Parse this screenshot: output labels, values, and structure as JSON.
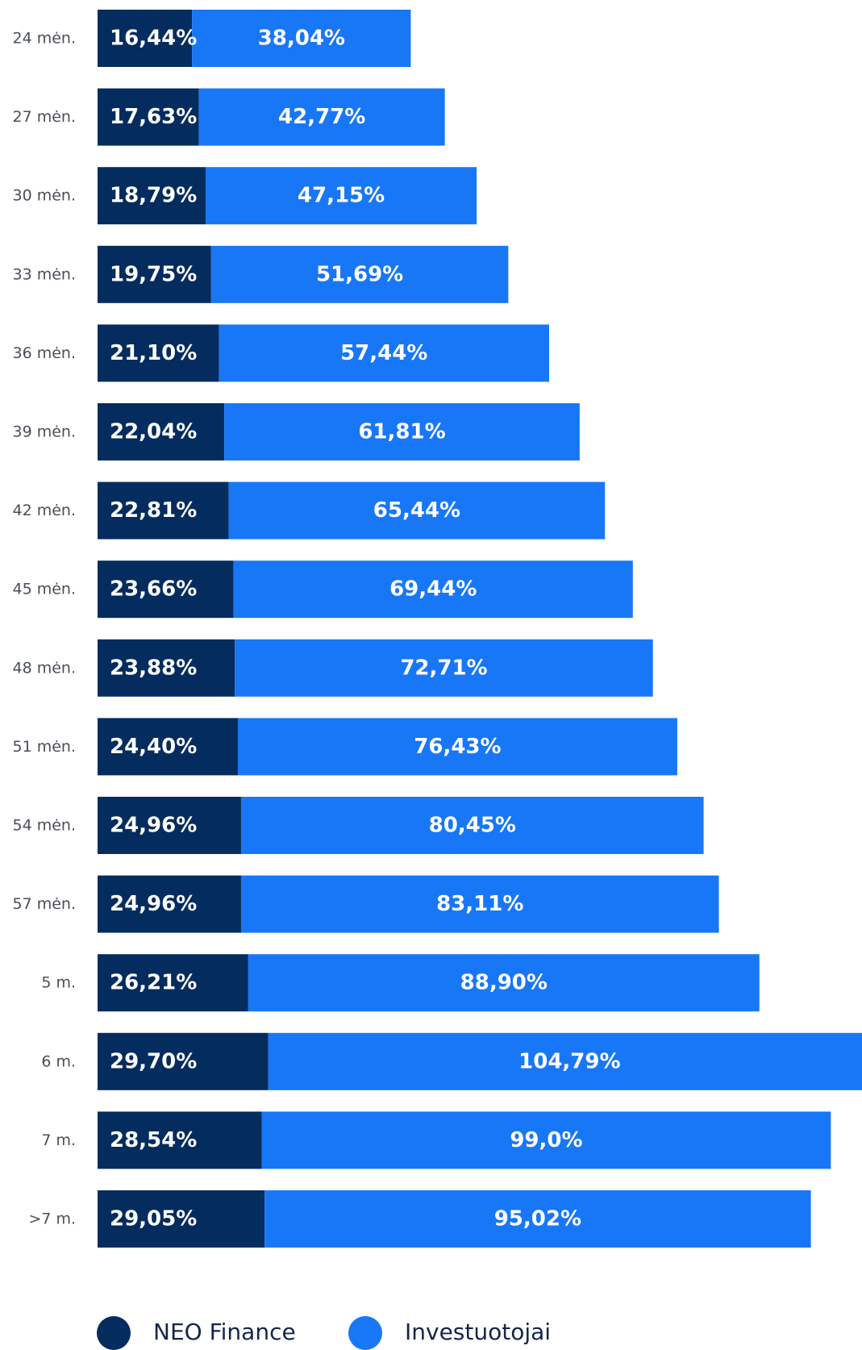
{
  "colors": {
    "neo": "#052c5e",
    "investors": "#1877f7"
  },
  "chart_data": {
    "type": "bar",
    "stacked": true,
    "orientation": "horizontal",
    "categories": [
      "24 mėn.",
      "27 mėn.",
      "30 mėn.",
      "33 mėn.",
      "36 mėn.",
      "39 mėn.",
      "42 mėn.",
      "45 mėn.",
      "48 mėn.",
      "51 mėn.",
      "54 mėn.",
      "57 mėn.",
      "5 m.",
      "6 m.",
      "7 m.",
      ">7 m."
    ],
    "series": [
      {
        "name": "NEO Finance",
        "values": [
          16.44,
          17.63,
          18.79,
          19.75,
          21.1,
          22.04,
          22.81,
          23.66,
          23.88,
          24.4,
          24.96,
          24.96,
          26.21,
          29.7,
          28.54,
          29.05
        ],
        "labels": [
          "16,44%",
          "17,63%",
          "18,79%",
          "19,75%",
          "21,10%",
          "22,04%",
          "22,81%",
          "23,66%",
          "23,88%",
          "24,40%",
          "24,96%",
          "24,96%",
          "26,21%",
          "29,70%",
          "28,54%",
          "29,05%"
        ]
      },
      {
        "name": "Investuotojai",
        "values": [
          38.04,
          42.77,
          47.15,
          51.69,
          57.44,
          61.81,
          65.44,
          69.44,
          72.71,
          76.43,
          80.45,
          83.11,
          88.9,
          104.79,
          99.0,
          95.02
        ],
        "labels": [
          "38,04%",
          "42,77%",
          "47,15%",
          "51,69%",
          "57,44%",
          "61,81%",
          "65,44%",
          "69,44%",
          "72,71%",
          "76,43%",
          "80,45%",
          "83,11%",
          "88,90%",
          "104,79%",
          "99,0%",
          "95,02%"
        ]
      }
    ],
    "legend_position": "bottom",
    "grid": false
  },
  "legend": {
    "neo_label": "NEO Finance",
    "investors_label": "Investuotojai"
  }
}
